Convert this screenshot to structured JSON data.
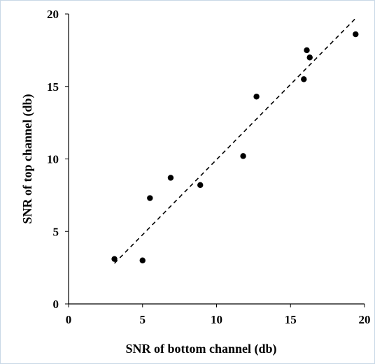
{
  "chart_data": {
    "type": "scatter",
    "title": "",
    "xlabel": "SNR of bottom channel (db)",
    "ylabel": "SNR of top channel (db)",
    "xlim": [
      0,
      20
    ],
    "ylim": [
      0,
      20
    ],
    "x_ticks": [
      "0",
      "5",
      "10",
      "15",
      "20"
    ],
    "y_ticks": [
      "0",
      "5",
      "10",
      "15",
      "20"
    ],
    "grid": false,
    "legend": "none",
    "point_color": "#000000",
    "series": [
      {
        "x": [
          3.1,
          5.0,
          5.5,
          6.9,
          8.9,
          11.8,
          12.7,
          15.9,
          16.1,
          16.3,
          19.4
        ],
        "y": [
          3.1,
          3.0,
          7.3,
          8.7,
          8.2,
          10.2,
          14.3,
          15.5,
          17.5,
          17.0,
          18.6
        ]
      }
    ],
    "trendline": {
      "style": "dashed",
      "x": [
        3.1,
        19.4
      ],
      "y": [
        2.8,
        19.7
      ]
    }
  }
}
